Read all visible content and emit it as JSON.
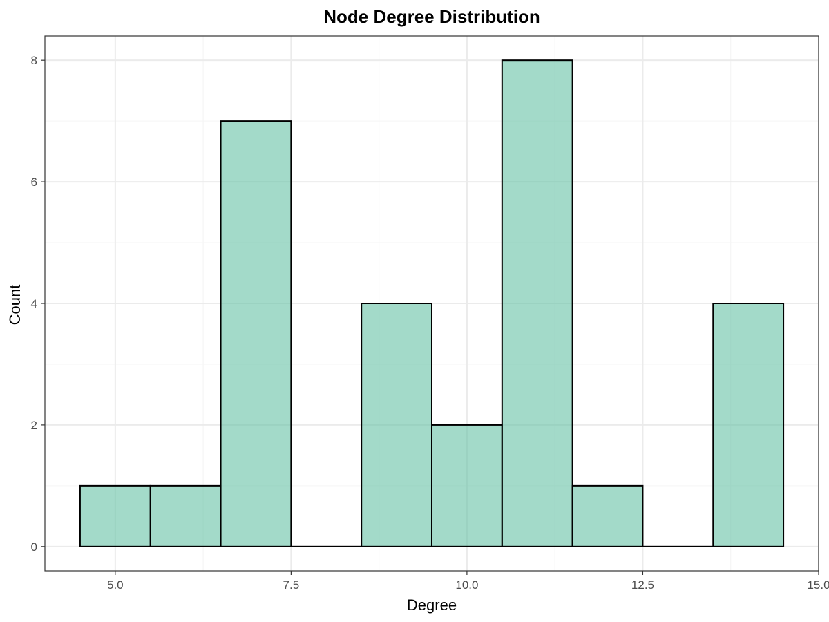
{
  "chart_data": {
    "type": "bar",
    "title": "Node Degree Distribution",
    "xlabel": "Degree",
    "ylabel": "Count",
    "bin_width": 1,
    "bins": [
      {
        "start": 4.5,
        "end": 5.5,
        "count": 1
      },
      {
        "start": 5.5,
        "end": 6.5,
        "count": 1
      },
      {
        "start": 6.5,
        "end": 7.5,
        "count": 7
      },
      {
        "start": 7.5,
        "end": 8.5,
        "count": 0
      },
      {
        "start": 8.5,
        "end": 9.5,
        "count": 4
      },
      {
        "start": 9.5,
        "end": 10.5,
        "count": 2
      },
      {
        "start": 10.5,
        "end": 11.5,
        "count": 8
      },
      {
        "start": 11.5,
        "end": 12.5,
        "count": 1
      },
      {
        "start": 12.5,
        "end": 13.5,
        "count": 0
      },
      {
        "start": 13.5,
        "end": 14.5,
        "count": 4
      }
    ],
    "xlim": [
      4.0,
      15.0
    ],
    "ylim": [
      -0.4,
      8.4
    ],
    "x_ticks": [
      5.0,
      7.5,
      10.0,
      12.5,
      15.0
    ],
    "x_tick_labels": [
      "5.0",
      "7.5",
      "10.0",
      "12.5",
      "15.0"
    ],
    "x_minor_ticks": [
      6.25,
      8.75,
      11.25,
      13.75
    ],
    "y_ticks": [
      0,
      2,
      4,
      6,
      8
    ],
    "y_tick_labels": [
      "0",
      "2",
      "4",
      "6",
      "8"
    ],
    "y_minor_ticks": [
      1,
      3,
      5,
      7
    ],
    "grid": true,
    "legend": "none",
    "colors": {
      "bar_fill": "#66C2A5",
      "bar_fill_opacity": 0.6,
      "bar_outline": "#000000",
      "grid_major": "#EBEBEB",
      "grid_minor": "#F5F5F5",
      "panel_border": "#333333"
    }
  }
}
